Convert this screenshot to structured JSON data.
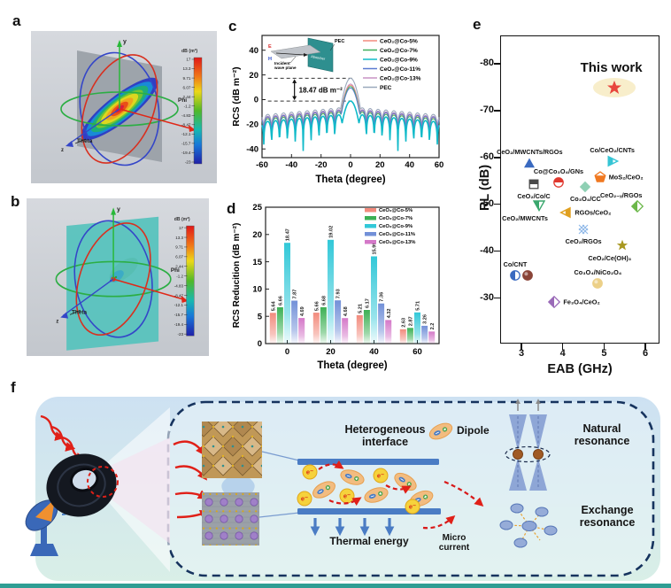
{
  "panels": {
    "a": "a",
    "b": "b",
    "c": "c",
    "d": "d",
    "e": "e",
    "f": "f"
  },
  "sim": {
    "colorbar_title": "dB (m²)",
    "colorbar_ticks": [
      "17",
      "13.3",
      "9.71",
      "6.07",
      "2.44",
      "-1.2",
      "-4.83",
      "-8.47",
      "-12.1",
      "-15.7",
      "-19.4",
      "-23"
    ],
    "axis": {
      "x": "x",
      "y": "y",
      "z": "z",
      "phi": "Phi",
      "theta": "Theta"
    }
  },
  "chart_data": [
    {
      "id": "c",
      "type": "line",
      "xlabel": "Theta (degree)",
      "ylabel": "RCS (dB m⁻²)",
      "xlim": [
        -60,
        60
      ],
      "ylim": [
        -45,
        52
      ],
      "xticks": [
        -60,
        -40,
        -20,
        0,
        20,
        40,
        60
      ],
      "yticks": [
        -40,
        -20,
        0,
        20,
        40
      ],
      "annotation": "18.47 dB m⁻²",
      "dashed_levels": [
        17.3,
        -1.2
      ],
      "legend_position": "top-right",
      "series": [
        {
          "name": "CeO₂@Co-5%",
          "color": "#f28b7d",
          "main_lobe_peak_dB": 11.7
        },
        {
          "name": "CeO₂@Co-7%",
          "color": "#3fae5c",
          "main_lobe_peak_dB": 10.6
        },
        {
          "name": "CeO₂@Co-9%",
          "color": "#10bac9",
          "main_lobe_peak_dB": -1.2
        },
        {
          "name": "CeO₂@Co-11%",
          "color": "#5a7bd0",
          "main_lobe_peak_dB": 9.4
        },
        {
          "name": "CeO₂@Co-13%",
          "color": "#c892c4",
          "main_lobe_peak_dB": 12.6
        },
        {
          "name": "PEC",
          "color": "#9aa8bc",
          "main_lobe_peak_dB": 17.3
        }
      ],
      "inset": {
        "absorber": "Absorber",
        "pec": "PEC",
        "incident": "Incident wave plane",
        "e_label": "E",
        "h_label": "H"
      }
    },
    {
      "id": "d",
      "type": "bar",
      "xlabel": "Theta (degree)",
      "ylabel": "RCS Reducition (dB m⁻²)",
      "ylim": [
        0,
        25
      ],
      "yticks": [
        0,
        5,
        10,
        15,
        20,
        25
      ],
      "categories": [
        0,
        20,
        40,
        60
      ],
      "legend_position": "top-right",
      "series": [
        {
          "name": "CeO₂@Co-5%",
          "color": "#f28b7d",
          "values": [
            5.64,
            5.66,
            5.21,
            2.63
          ]
        },
        {
          "name": "CeO₂@Co-7%",
          "color": "#3cb054",
          "values": [
            6.66,
            6.68,
            6.17,
            2.87
          ]
        },
        {
          "name": "CeO₂@Co-9%",
          "color": "#32c8d8",
          "values": [
            18.47,
            19.02,
            15.99,
            5.71
          ]
        },
        {
          "name": "CeO₂@Co-11%",
          "color": "#7290d8",
          "values": [
            7.87,
            7.93,
            7.36,
            3.26
          ]
        },
        {
          "name": "CeO₂@Co-13%",
          "color": "#d478c8",
          "values": [
            4.69,
            4.68,
            4.32,
            2.2
          ]
        }
      ]
    },
    {
      "id": "e",
      "type": "scatter",
      "xlabel": "EAB (GHz)",
      "ylabel": "RL (dB)",
      "xlim": [
        2.5,
        6.3
      ],
      "xticks": [
        3,
        4,
        5,
        6
      ],
      "yticks": [
        -80,
        -70,
        -60,
        -50,
        -40,
        -30
      ],
      "y_inverted": true,
      "points": [
        {
          "label": "This work",
          "x": 5.25,
          "y": -74.8,
          "marker": "star",
          "color": "#e8453c",
          "lp": "above",
          "highlight": true
        },
        {
          "label": "CeO₂/MWCNTs/RGOs",
          "x": 3.2,
          "y": -58.8,
          "marker": "triangle-up",
          "color": "#3a6ac0",
          "lp": "above"
        },
        {
          "label": "Co/CeO₂/CNTs",
          "x": 5.2,
          "y": -59.2,
          "marker": "triangle-right",
          "color": "#35c4d4",
          "lp": "above"
        },
        {
          "label": "Co@Co₃O₄/GNs",
          "x": 3.9,
          "y": -54.6,
          "marker": "circle-half",
          "color": "#e0392f",
          "lp": "above"
        },
        {
          "label": "CeO₂/Co/C",
          "x": 3.3,
          "y": -54.2,
          "marker": "square-half",
          "color": "#4a4a4a",
          "lp": "below"
        },
        {
          "label": "MoS₂/CeO₂",
          "x": 4.9,
          "y": -55.8,
          "marker": "pentagon-half",
          "color": "#f07820",
          "lp": "right"
        },
        {
          "label": "Co₃O₄/CC",
          "x": 4.55,
          "y": -53.8,
          "marker": "diamond",
          "color": "#8fd0b4",
          "lp": "below"
        },
        {
          "label": "CeO₂₋ₓ/RGOs",
          "x": 5.8,
          "y": -49.6,
          "marker": "diamond-half",
          "color": "#6cb84a",
          "lp": "above-left"
        },
        {
          "label": "CeO₂/MWCNTs",
          "x": 3.42,
          "y": -49.8,
          "marker": "triangle-down-half",
          "color": "#3aa76d",
          "lp": "below-left"
        },
        {
          "label": "RGOs/CeO₂",
          "x": 4.08,
          "y": -48.3,
          "marker": "triangle-left-half",
          "color": "#e0a020",
          "lp": "right"
        },
        {
          "label": "CeO₂/RGOs",
          "x": 4.5,
          "y": -44.6,
          "marker": "crosshatch",
          "color": "#8fb8e8",
          "lp": "below"
        },
        {
          "label": "CeO₂/Ce(OH)₃",
          "x": 5.45,
          "y": -41.3,
          "marker": "star",
          "color": "#a89820",
          "lp": "below-left"
        },
        {
          "label": "Co/CNT",
          "x": 2.85,
          "y": -34.8,
          "marker": "circle-half-v",
          "color": "#3a6ac0",
          "lp": "above"
        },
        {
          "label": "",
          "x": 3.15,
          "y": -34.8,
          "marker": "sphere",
          "color": "#8a4438",
          "lp": "right"
        },
        {
          "label": "Co₃O₄/NiCo₂O₄",
          "x": 4.85,
          "y": -33.2,
          "marker": "sphere",
          "color": "#ecd088",
          "lp": "above"
        },
        {
          "label": "Fe₃O₄/CeO₂",
          "x": 3.8,
          "y": -29.2,
          "marker": "diamond-half",
          "color": "#9a6ab8",
          "lp": "right"
        }
      ]
    }
  ],
  "panel_f": {
    "heterogeneous_interface": "Heterogeneous interface",
    "dipole": "Dipole",
    "natural_resonance": "Natural resonance",
    "exchange_resonance": "Exchange resonance",
    "thermal_energy": "Thermal energy",
    "micro_current": "Micro current",
    "electron": "e⁻"
  }
}
